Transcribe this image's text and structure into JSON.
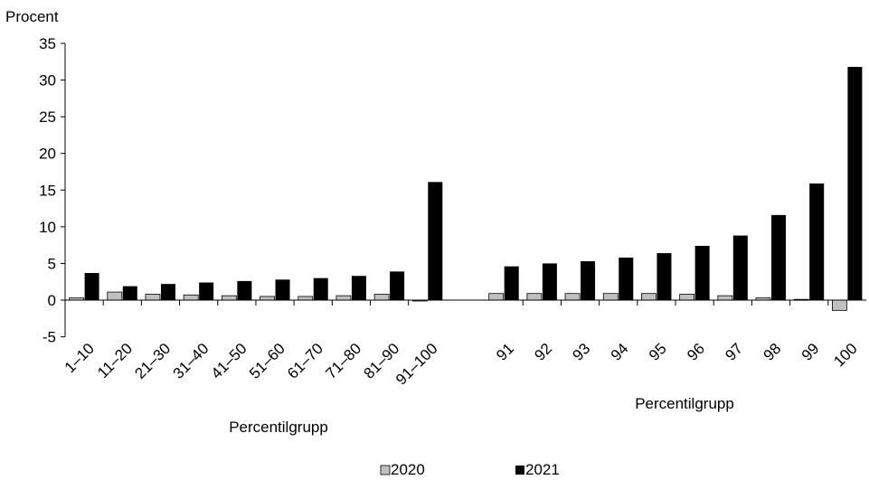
{
  "chart_data": {
    "type": "bar",
    "ylabel": "Procent",
    "ylim": [
      -5,
      35
    ],
    "yticks": [
      "35",
      "30",
      "25",
      "20",
      "15",
      "10",
      "5",
      "0",
      "-5"
    ],
    "grid": false,
    "legend_position": "bottom",
    "groups": [
      {
        "xlabel": "Percentilgrupp",
        "categories": [
          "1–10",
          "11–20",
          "21–30",
          "31–40",
          "41–50",
          "51–60",
          "61–70",
          "71–80",
          "81–90",
          "91–100"
        ],
        "series": [
          {
            "name": "2020",
            "values": [
              0.3,
              1.1,
              0.8,
              0.7,
              0.6,
              0.5,
              0.5,
              0.6,
              0.8,
              -0.1
            ]
          },
          {
            "name": "2021",
            "values": [
              3.7,
              1.9,
              2.2,
              2.4,
              2.6,
              2.8,
              3.0,
              3.3,
              3.9,
              16.1
            ]
          }
        ]
      },
      {
        "xlabel": "Percentilgrupp",
        "categories": [
          "91",
          "92",
          "93",
          "94",
          "95",
          "96",
          "97",
          "98",
          "99",
          "100"
        ],
        "series": [
          {
            "name": "2020",
            "values": [
              0.9,
              0.9,
              0.9,
              0.9,
              0.9,
              0.8,
              0.6,
              0.3,
              0.1,
              -1.4
            ]
          },
          {
            "name": "2021",
            "values": [
              4.6,
              5.0,
              5.3,
              5.8,
              6.4,
              7.4,
              8.8,
              11.6,
              15.9,
              31.8
            ]
          }
        ]
      }
    ],
    "colors": {
      "2020": "#c0c0c0",
      "2021": "#000000"
    }
  }
}
